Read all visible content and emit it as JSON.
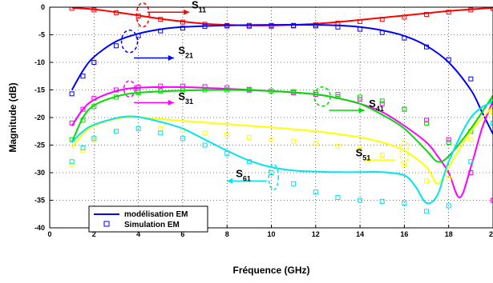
{
  "chart_data": {
    "type": "line",
    "title": "",
    "xlabel": "Fréquence (GHz)",
    "ylabel": "Magnitude (dB)",
    "xlim": [
      0,
      20
    ],
    "ylim": [
      -40,
      0
    ],
    "xticks": [
      0,
      2,
      4,
      6,
      8,
      10,
      12,
      14,
      16,
      18,
      20
    ],
    "yticks": [
      0,
      -5,
      -10,
      -15,
      -20,
      -25,
      -30,
      -35,
      -40
    ],
    "grid": true,
    "legend_position": "bottom-left",
    "legend": [
      {
        "label": "modélisation EM",
        "style": "line"
      },
      {
        "label": "Simulation EM",
        "style": "square-marker"
      }
    ],
    "series": [
      {
        "name": "S11",
        "label_main": "S",
        "label_sub": "11",
        "color": "#ff0000",
        "model": [
          [
            1,
            -0.1
          ],
          [
            2,
            -0.4
          ],
          [
            3,
            -0.9
          ],
          [
            4,
            -1.5
          ],
          [
            5,
            -2.1
          ],
          [
            6,
            -2.6
          ],
          [
            7,
            -3.0
          ],
          [
            8,
            -3.2
          ],
          [
            9,
            -3.3
          ],
          [
            10,
            -3.3
          ],
          [
            11,
            -3.2
          ],
          [
            12,
            -3.0
          ],
          [
            13,
            -2.7
          ],
          [
            14,
            -2.3
          ],
          [
            15,
            -1.9
          ],
          [
            16,
            -1.5
          ],
          [
            17,
            -1.1
          ],
          [
            18,
            -0.7
          ],
          [
            19,
            -0.4
          ],
          [
            20,
            -0.1
          ]
        ],
        "sim": [
          [
            1,
            -0.2
          ],
          [
            2,
            -0.5
          ],
          [
            3,
            -1.0
          ],
          [
            4,
            -1.6
          ],
          [
            5,
            -2.2
          ],
          [
            6,
            -2.7
          ],
          [
            7,
            -3.1
          ],
          [
            8,
            -3.3
          ],
          [
            9,
            -3.5
          ],
          [
            10,
            -3.5
          ],
          [
            11,
            -3.4
          ],
          [
            12,
            -3.2
          ],
          [
            13,
            -2.9
          ],
          [
            14,
            -2.6
          ],
          [
            15,
            -2.2
          ],
          [
            16,
            -1.8
          ],
          [
            17,
            -1.3
          ],
          [
            18,
            -0.9
          ],
          [
            19,
            -0.5
          ],
          [
            20,
            -0.2
          ]
        ]
      },
      {
        "name": "S21",
        "label_main": "S",
        "label_sub": "21",
        "color": "#0000ff",
        "model": [
          [
            1,
            -15
          ],
          [
            1.5,
            -11.5
          ],
          [
            2,
            -9.0
          ],
          [
            3,
            -6.2
          ],
          [
            4,
            -4.8
          ],
          [
            5,
            -4.0
          ],
          [
            6,
            -3.6
          ],
          [
            8,
            -3.3
          ],
          [
            10,
            -3.2
          ],
          [
            12,
            -3.2
          ],
          [
            13,
            -3.3
          ],
          [
            14,
            -3.6
          ],
          [
            15,
            -4.2
          ],
          [
            16,
            -5.2
          ],
          [
            17,
            -7.0
          ],
          [
            18,
            -10.0
          ],
          [
            19,
            -15.0
          ],
          [
            19.5,
            -19.0
          ],
          [
            20,
            -23.0
          ]
        ],
        "sim": [
          [
            1,
            -15.7
          ],
          [
            1.5,
            -12.5
          ],
          [
            2,
            -10.0
          ],
          [
            3,
            -7.0
          ],
          [
            4,
            -5.2
          ],
          [
            5,
            -4.3
          ],
          [
            6,
            -3.8
          ],
          [
            7,
            -3.5
          ],
          [
            8,
            -3.4
          ],
          [
            9,
            -3.3
          ],
          [
            10,
            -3.3
          ],
          [
            11,
            -3.3
          ],
          [
            12,
            -3.4
          ],
          [
            13,
            -3.6
          ],
          [
            14,
            -4.0
          ],
          [
            15,
            -4.6
          ],
          [
            16,
            -5.6
          ],
          [
            17,
            -7.2
          ],
          [
            18,
            -9.5
          ],
          [
            19,
            -13.0
          ],
          [
            20,
            -18.0
          ]
        ]
      },
      {
        "name": "S31",
        "label_main": "S",
        "label_sub": "31",
        "color": "#ff00ff",
        "model": [
          [
            1,
            -21.5
          ],
          [
            1.5,
            -18.5
          ],
          [
            2,
            -16.8
          ],
          [
            3,
            -15.2
          ],
          [
            4,
            -14.6
          ],
          [
            6,
            -14.5
          ],
          [
            8,
            -14.8
          ],
          [
            10,
            -15.2
          ],
          [
            12,
            -15.8
          ],
          [
            13,
            -16.5
          ],
          [
            14,
            -17.5
          ],
          [
            15,
            -19.0
          ],
          [
            16,
            -21.5
          ],
          [
            17,
            -24.5
          ],
          [
            17.5,
            -27.0
          ],
          [
            18,
            -30.0
          ],
          [
            18.5,
            -34.5
          ],
          [
            19,
            -29.0
          ],
          [
            19.5,
            -22.0
          ],
          [
            20,
            -17.0
          ]
        ],
        "sim": [
          [
            1,
            -21.0
          ],
          [
            1.5,
            -18.5
          ],
          [
            2,
            -16.5
          ],
          [
            3,
            -15.0
          ],
          [
            4,
            -14.5
          ],
          [
            5,
            -14.3
          ],
          [
            6,
            -14.3
          ],
          [
            7,
            -14.4
          ],
          [
            8,
            -14.6
          ],
          [
            9,
            -14.9
          ],
          [
            10,
            -15.2
          ],
          [
            11,
            -15.5
          ],
          [
            12,
            -15.8
          ],
          [
            13,
            -16.2
          ],
          [
            14,
            -16.7
          ],
          [
            15,
            -17.5
          ],
          [
            16,
            -18.5
          ],
          [
            17,
            -20.5
          ],
          [
            18,
            -24.0
          ],
          [
            19,
            -30.0
          ],
          [
            20,
            -35.0
          ]
        ]
      },
      {
        "name": "S41",
        "label_main": "S",
        "label_sub": "41",
        "color": "#00dd00",
        "model": [
          [
            1,
            -24.5
          ],
          [
            1.5,
            -20.0
          ],
          [
            2,
            -17.8
          ],
          [
            3,
            -16.2
          ],
          [
            4,
            -15.5
          ],
          [
            6,
            -15.1
          ],
          [
            8,
            -15.0
          ],
          [
            10,
            -15.2
          ],
          [
            12,
            -15.8
          ],
          [
            13,
            -16.5
          ],
          [
            14,
            -17.5
          ],
          [
            15,
            -19.5
          ],
          [
            16,
            -22.0
          ],
          [
            17,
            -26.0
          ],
          [
            17.5,
            -28.0
          ],
          [
            18,
            -27.0
          ],
          [
            19,
            -22.0
          ],
          [
            20,
            -16.0
          ]
        ],
        "sim": [
          [
            1,
            -24.0
          ],
          [
            1.5,
            -20.5
          ],
          [
            2,
            -18.0
          ],
          [
            3,
            -16.3
          ],
          [
            4,
            -15.5
          ],
          [
            5,
            -15.2
          ],
          [
            6,
            -15.0
          ],
          [
            7,
            -15.0
          ],
          [
            8,
            -15.0
          ],
          [
            9,
            -15.1
          ],
          [
            10,
            -15.2
          ],
          [
            11,
            -15.3
          ],
          [
            12,
            -15.5
          ],
          [
            13,
            -15.8
          ],
          [
            14,
            -16.3
          ],
          [
            15,
            -17.0
          ],
          [
            16,
            -18.5
          ],
          [
            17,
            -21.0
          ],
          [
            18,
            -24.5
          ],
          [
            19,
            -22.5
          ],
          [
            20,
            -17.0
          ]
        ]
      },
      {
        "name": "S51",
        "label_main": "S",
        "label_sub": "51",
        "color": "#ffff00",
        "model": [
          [
            1,
            -25.5
          ],
          [
            1.5,
            -23.0
          ],
          [
            2,
            -21.5
          ],
          [
            3,
            -20.2
          ],
          [
            4,
            -20.0
          ],
          [
            6,
            -20.6
          ],
          [
            8,
            -21.2
          ],
          [
            10,
            -21.8
          ],
          [
            12,
            -22.5
          ],
          [
            13,
            -23.0
          ],
          [
            14,
            -23.6
          ],
          [
            15,
            -24.5
          ],
          [
            16,
            -26.0
          ],
          [
            17,
            -29.0
          ],
          [
            17.5,
            -32.0
          ],
          [
            18,
            -29.0
          ],
          [
            19,
            -22.5
          ],
          [
            20,
            -18.0
          ]
        ],
        "sim": [
          [
            1,
            -28.5
          ],
          [
            1.5,
            -26.0
          ],
          [
            2,
            -24.0
          ],
          [
            3,
            -22.5
          ],
          [
            4,
            -22.0
          ],
          [
            5,
            -22.0
          ],
          [
            6,
            -22.3
          ],
          [
            7,
            -22.8
          ],
          [
            8,
            -23.2
          ],
          [
            9,
            -23.6
          ],
          [
            10,
            -24.0
          ],
          [
            11,
            -24.3
          ],
          [
            12,
            -24.7
          ],
          [
            13,
            -25.2
          ],
          [
            14,
            -25.8
          ],
          [
            15,
            -26.8
          ],
          [
            16,
            -28.5
          ],
          [
            17,
            -31.5
          ],
          [
            18,
            -31.0
          ],
          [
            19,
            -24.0
          ],
          [
            20,
            -19.0
          ]
        ]
      },
      {
        "name": "S61",
        "label_main": "S",
        "label_sub": "61",
        "color": "#00e5ee",
        "model": [
          [
            1,
            -24.5
          ],
          [
            1.5,
            -22.5
          ],
          [
            2,
            -21.3
          ],
          [
            3,
            -20.1
          ],
          [
            3.5,
            -19.8
          ],
          [
            4,
            -19.9
          ],
          [
            5,
            -20.8
          ],
          [
            6,
            -22.0
          ],
          [
            7,
            -24.0
          ],
          [
            8,
            -26.0
          ],
          [
            9,
            -27.8
          ],
          [
            10,
            -29.0
          ],
          [
            11,
            -29.6
          ],
          [
            12,
            -29.8
          ],
          [
            13,
            -29.9
          ],
          [
            14,
            -29.9
          ],
          [
            15,
            -29.9
          ],
          [
            16,
            -30.5
          ],
          [
            16.5,
            -32.5
          ],
          [
            17,
            -35.5
          ],
          [
            17.5,
            -34.0
          ],
          [
            18,
            -28.0
          ],
          [
            19,
            -20.0
          ],
          [
            20,
            -17.0
          ]
        ],
        "sim": [
          [
            1,
            -28.0
          ],
          [
            1.5,
            -25.5
          ],
          [
            2,
            -23.8
          ],
          [
            3,
            -22.5
          ],
          [
            4,
            -22.0
          ],
          [
            5,
            -22.8
          ],
          [
            6,
            -23.8
          ],
          [
            7,
            -25.0
          ],
          [
            8,
            -26.5
          ],
          [
            9,
            -28.0
          ],
          [
            10,
            -30.0
          ],
          [
            11,
            -32.0
          ],
          [
            12,
            -33.5
          ],
          [
            13,
            -34.5
          ],
          [
            14,
            -35.0
          ],
          [
            15,
            -35.2
          ],
          [
            16,
            -35.5
          ],
          [
            17,
            -37.0
          ],
          [
            18,
            -36.0
          ],
          [
            19,
            -28.0
          ],
          [
            20,
            -21.0
          ]
        ]
      }
    ]
  }
}
